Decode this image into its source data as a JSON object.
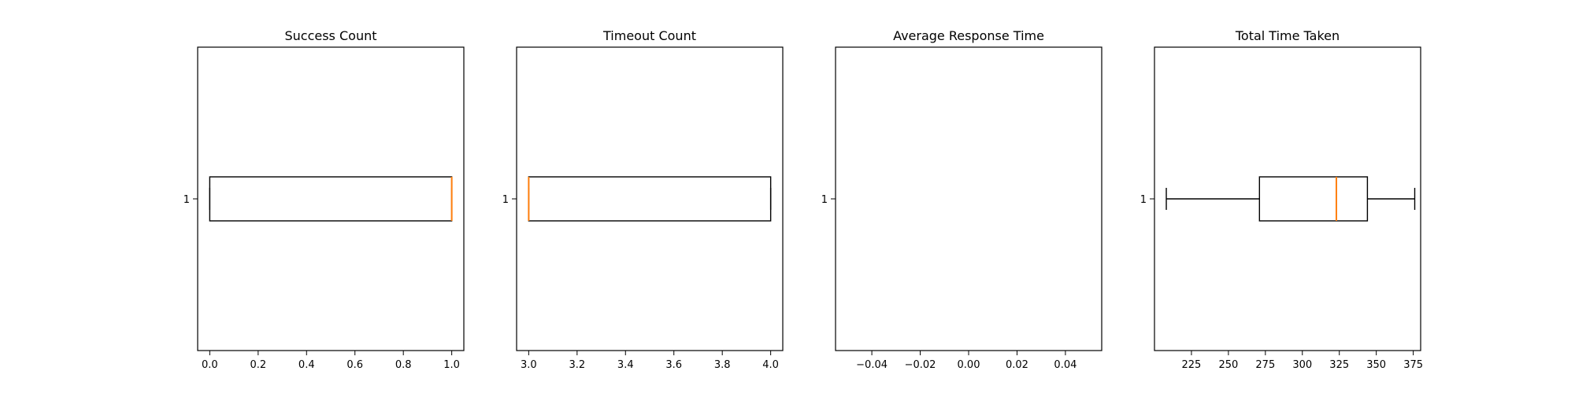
{
  "chart_data": [
    {
      "type": "boxplot",
      "orientation": "horizontal",
      "title": "Success Count",
      "y_categories": [
        "1"
      ],
      "xlim": [
        -0.05,
        1.05
      ],
      "xticks": [
        0.0,
        0.2,
        0.4,
        0.6,
        0.8,
        1.0
      ],
      "xtick_labels": [
        "0.0",
        "0.2",
        "0.4",
        "0.6",
        "0.8",
        "1.0"
      ],
      "box": {
        "whisker_low": 0.0,
        "q1": 0.0,
        "median": 1.0,
        "q3": 1.0,
        "whisker_high": 1.0
      }
    },
    {
      "type": "boxplot",
      "orientation": "horizontal",
      "title": "Timeout Count",
      "y_categories": [
        "1"
      ],
      "xlim": [
        2.95,
        4.05
      ],
      "xticks": [
        3.0,
        3.2,
        3.4,
        3.6,
        3.8,
        4.0
      ],
      "xtick_labels": [
        "3.0",
        "3.2",
        "3.4",
        "3.6",
        "3.8",
        "4.0"
      ],
      "box": {
        "whisker_low": 3.0,
        "q1": 3.0,
        "median": 3.0,
        "q3": 4.0,
        "whisker_high": 4.0
      }
    },
    {
      "type": "boxplot",
      "orientation": "horizontal",
      "title": "Average Response Time",
      "y_categories": [
        "1"
      ],
      "xlim": [
        -0.055,
        0.055
      ],
      "xticks": [
        -0.04,
        -0.02,
        0.0,
        0.02,
        0.04
      ],
      "xtick_labels": [
        "−0.04",
        "−0.02",
        "0.00",
        "0.02",
        "0.04"
      ],
      "box": null
    },
    {
      "type": "boxplot",
      "orientation": "horizontal",
      "title": "Total Time Taken",
      "y_categories": [
        "1"
      ],
      "xlim": [
        200,
        380
      ],
      "xticks": [
        225,
        250,
        275,
        300,
        325,
        350,
        375
      ],
      "xtick_labels": [
        "225",
        "250",
        "275",
        "300",
        "325",
        "350",
        "375"
      ],
      "box": {
        "whisker_low": 208,
        "q1": 271,
        "median": 323,
        "q3": 344,
        "whisker_high": 376
      }
    }
  ],
  "colors": {
    "box_edge": "#000000",
    "median": "#ff7f0e",
    "background": "#ffffff"
  }
}
